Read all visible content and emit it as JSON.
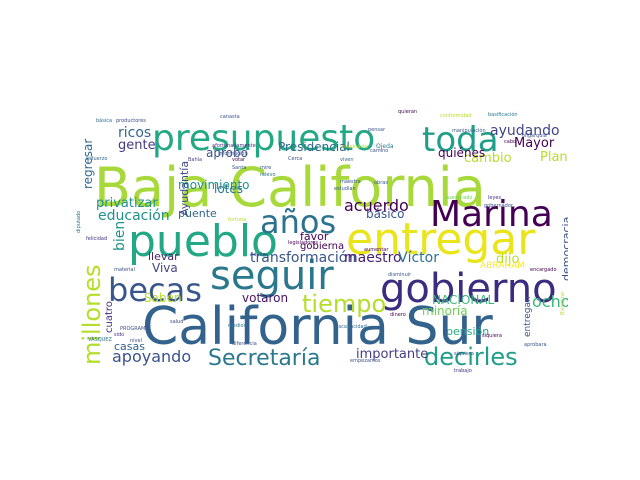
{
  "words": [
    {
      "t": "Baja California",
      "c": "#a8d93a"
    },
    {
      "t": "California Sur",
      "c": "#33638d"
    },
    {
      "t": "pueblo",
      "c": "#22a884"
    },
    {
      "t": "entregar",
      "c": "#eae51a"
    },
    {
      "t": "seguir",
      "c": "#2a788e"
    },
    {
      "t": "gobierno",
      "c": "#3b2c80"
    },
    {
      "t": "presupuesto",
      "c": "#22a884"
    },
    {
      "t": "Marina",
      "c": "#440154"
    },
    {
      "t": "becas",
      "c": "#39568c"
    },
    {
      "t": "toda",
      "c": "#1f9e89"
    },
    {
      "t": "años",
      "c": "#2c728e"
    },
    {
      "t": "decirles",
      "c": "#1f9e89"
    },
    {
      "t": "Secretaría",
      "c": "#2a788e"
    },
    {
      "t": "millones",
      "c": "#b5de2b"
    },
    {
      "t": "tiempo",
      "c": "#b5de2b"
    },
    {
      "t": "apoyando",
      "c": "#3b528b"
    },
    {
      "t": "ayudando",
      "c": "#414487"
    },
    {
      "t": "transformación",
      "c": "#39568c"
    },
    {
      "t": "maestro",
      "c": "#481f70"
    },
    {
      "t": "Víctor",
      "c": "#2c728e"
    },
    {
      "t": "acuerdo",
      "c": "#440154"
    },
    {
      "t": "ocho",
      "c": "#35b779"
    },
    {
      "t": "ricos",
      "c": "#31688e"
    },
    {
      "t": "educación",
      "c": "#21918c"
    },
    {
      "t": "importante",
      "c": "#433e85"
    },
    {
      "t": "privatizar",
      "c": "#21918c"
    },
    {
      "t": "Plan",
      "c": "#b5de2b"
    },
    {
      "t": "cambio",
      "c": "#b5de2b"
    },
    {
      "t": "Mayor",
      "c": "#440154"
    },
    {
      "t": "bien",
      "c": "#21918c"
    },
    {
      "t": "gente",
      "c": "#443983"
    },
    {
      "t": "dijo",
      "c": "#b5de2b"
    },
    {
      "t": "quiénes",
      "c": "#440154"
    },
    {
      "t": "NACIONAL",
      "c": "#35b779"
    },
    {
      "t": "votaron",
      "c": "#471365"
    },
    {
      "t": "Saben",
      "c": "#b5de2b"
    },
    {
      "t": "Viva",
      "c": "#414487"
    },
    {
      "t": "minoría",
      "c": "#6ece58"
    },
    {
      "t": "regresar",
      "c": "#31688e"
    },
    {
      "t": "movimiento",
      "c": "#21918c"
    },
    {
      "t": "básico",
      "c": "#39568c"
    },
    {
      "t": "aprobó",
      "c": "#3b528b"
    },
    {
      "t": "lotes",
      "c": "#2a788e"
    },
    {
      "t": "Presidencial",
      "c": "#31688e"
    },
    {
      "t": "pensión",
      "c": "#22a884"
    },
    {
      "t": "casas",
      "c": "#33638d"
    },
    {
      "t": "favor",
      "c": "#440154"
    },
    {
      "t": "gobierna",
      "c": "#440154"
    },
    {
      "t": "llevar",
      "c": "#481f70"
    },
    {
      "t": "democracia",
      "c": "#3b528b"
    },
    {
      "t": "puente",
      "c": "#31688e"
    },
    {
      "t": "cuatro",
      "c": "#46327e"
    },
    {
      "t": "ABRAHAM",
      "c": "#fde725"
    },
    {
      "t": "Ayudantía",
      "c": "#3e4989"
    },
    {
      "t": "entregan",
      "c": "#3b528b"
    },
    {
      "t": "básica",
      "c": "#2c728e"
    },
    {
      "t": "productores",
      "c": "#3e4989"
    },
    {
      "t": "canasta",
      "c": "#3b528b"
    },
    {
      "t": "quieran",
      "c": "#440154"
    },
    {
      "t": "pensar",
      "c": "#39568c"
    },
    {
      "t": "conformidad",
      "c": "#b5de2b"
    },
    {
      "t": "basificación",
      "c": "#2a788e"
    },
    {
      "t": "afortunadamente",
      "c": "#46327e"
    },
    {
      "t": "eliminaste",
      "c": "#b5de2b"
    },
    {
      "t": "Ojeda",
      "c": "#2a788e"
    },
    {
      "t": "cabo",
      "c": "#440154"
    },
    {
      "t": "oligarquía",
      "c": "#3b528b"
    },
    {
      "t": "manipulación",
      "c": "#39568c"
    },
    {
      "t": "información",
      "c": "#3b528b"
    },
    {
      "t": "esfuerzo",
      "c": "#31688e"
    },
    {
      "t": "Bahía",
      "c": "#3e4989"
    },
    {
      "t": "Cerca",
      "c": "#3b528b"
    },
    {
      "t": "viven",
      "c": "#31688e"
    },
    {
      "t": "camino",
      "c": "#3b528b"
    },
    {
      "t": "asegurado",
      "c": "#6ece58"
    },
    {
      "t": "leyes",
      "c": "#46327e"
    },
    {
      "t": "gobernador",
      "c": "#3e4989"
    },
    {
      "t": "votar",
      "c": "#440154"
    },
    {
      "t": "Santa",
      "c": "#39568c"
    },
    {
      "t": "relevo",
      "c": "#2c728e"
    },
    {
      "t": "maestra",
      "c": "#3b528b"
    },
    {
      "t": "obras",
      "c": "#39568c"
    },
    {
      "t": "estudian",
      "c": "#3b528b"
    },
    {
      "t": "legisladores",
      "c": "#440154"
    },
    {
      "t": "diputado",
      "c": "#2a788e"
    },
    {
      "t": "felicidad",
      "c": "#46327e"
    },
    {
      "t": "material",
      "c": "#3b528b"
    },
    {
      "t": "fortuna",
      "c": "#b5de2b"
    },
    {
      "t": "adulto",
      "c": "#3b528b"
    },
    {
      "t": "disminuir",
      "c": "#39568c"
    },
    {
      "t": "encargado",
      "c": "#440154"
    },
    {
      "t": "trabajo",
      "c": "#46327e"
    },
    {
      "t": "aprobara",
      "c": "#39568c"
    },
    {
      "t": "diferencia",
      "c": "#3b528b"
    },
    {
      "t": "empezamos",
      "c": "#3b528b"
    },
    {
      "t": "medios",
      "c": "#2a788e"
    },
    {
      "t": "discapacidad",
      "c": "#31688e"
    },
    {
      "t": "siquiera",
      "c": "#440154"
    },
    {
      "t": "PROGRAMA",
      "c": "#3b528b"
    },
    {
      "t": "VÁSQUEZ",
      "c": "#2a788e"
    },
    {
      "t": "siquiera",
      "c": "#3b528b"
    },
    {
      "t": "dinero",
      "c": "#440154"
    },
    {
      "t": "salud",
      "c": "#3e4989"
    },
    {
      "t": "mire",
      "c": "#39568c"
    },
    {
      "t": "sido",
      "c": "#46327e"
    },
    {
      "t": "nivel",
      "c": "#3b528b"
    },
    {
      "t": "Bienestar",
      "c": "#b5de2b"
    },
    {
      "t": "aumentar",
      "c": "#440154"
    }
  ]
}
